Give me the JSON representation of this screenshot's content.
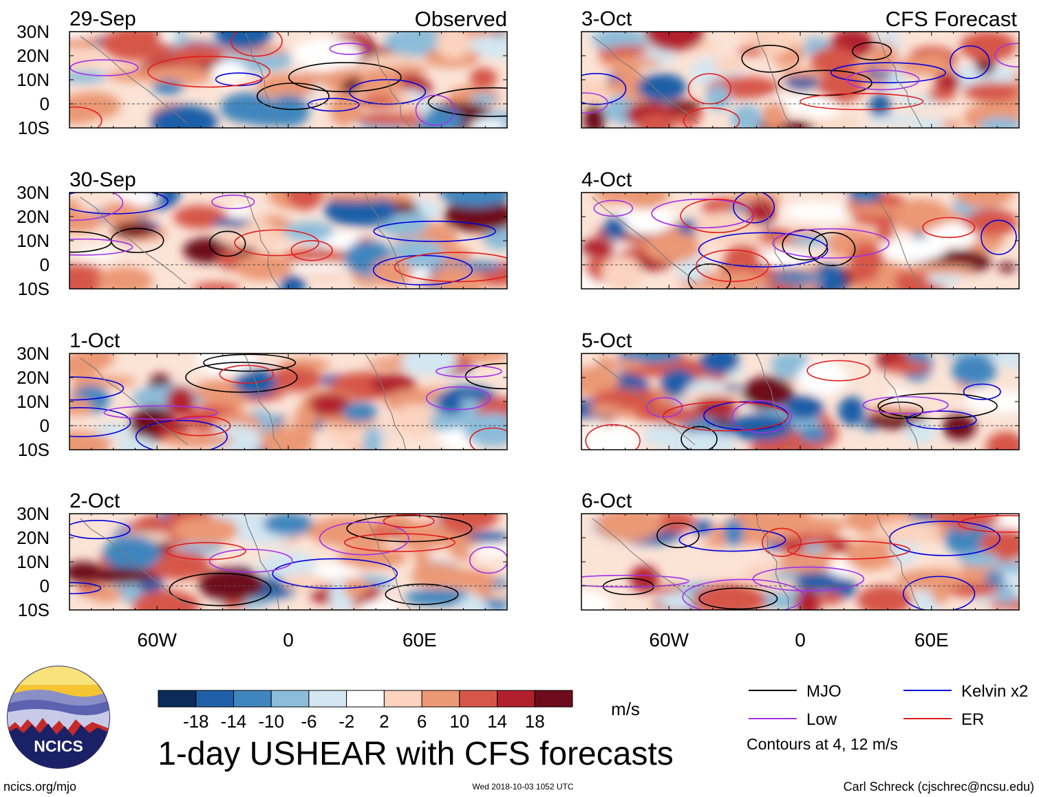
{
  "chart_data": {
    "type": "heatmap",
    "title": "1-day USHEAR with CFS forecasts",
    "variable": "USHEAR",
    "units": "m/s",
    "headers": {
      "left": "Observed",
      "right": "CFS Forecast"
    },
    "xlim": [
      -100,
      100
    ],
    "ylim": [
      -10,
      30
    ],
    "x_ticks": [
      {
        "value": -60,
        "label": "60W"
      },
      {
        "value": 0,
        "label": "0"
      },
      {
        "value": 60,
        "label": "60E"
      }
    ],
    "y_ticks": [
      {
        "value": 30,
        "label": "30N"
      },
      {
        "value": 20,
        "label": "20N"
      },
      {
        "value": 10,
        "label": "10N"
      },
      {
        "value": 0,
        "label": "0"
      },
      {
        "value": -10,
        "label": "10S"
      }
    ],
    "panels": [
      {
        "date": "29-Sep",
        "kind": "observed",
        "column": 0,
        "row": 0
      },
      {
        "date": "30-Sep",
        "kind": "observed",
        "column": 0,
        "row": 1
      },
      {
        "date": "1-Oct",
        "kind": "observed",
        "column": 0,
        "row": 2
      },
      {
        "date": "2-Oct",
        "kind": "observed",
        "column": 0,
        "row": 3
      },
      {
        "date": "3-Oct",
        "kind": "forecast",
        "column": 1,
        "row": 0
      },
      {
        "date": "4-Oct",
        "kind": "forecast",
        "column": 1,
        "row": 1
      },
      {
        "date": "5-Oct",
        "kind": "forecast",
        "column": 1,
        "row": 2
      },
      {
        "date": "6-Oct",
        "kind": "forecast",
        "column": 1,
        "row": 3
      }
    ],
    "colorbar": {
      "levels": [
        "-18",
        "-14",
        "-10",
        "-6",
        "-2",
        "2",
        "6",
        "10",
        "14",
        "18"
      ],
      "colors": [
        "#0d2b59",
        "#1f5fa8",
        "#3f86be",
        "#8cbcd9",
        "#d3e6f1",
        "#ffffff",
        "#fbd3be",
        "#eb9874",
        "#d65749",
        "#b2202d",
        "#6e0c1d"
      ],
      "units": "m/s"
    },
    "legend": [
      {
        "label": "MJO",
        "color": "#000000"
      },
      {
        "label": "Kelvin x2",
        "color": "#0000dd"
      },
      {
        "label": "Low",
        "color": "#a030e8"
      },
      {
        "label": "ER",
        "color": "#e31a1c"
      }
    ],
    "contour_note": "Contours at 4, 12 m/s"
  },
  "footer": {
    "website": "ncics.org/mjo",
    "timestamp": "Wed 2018-10-03 1052 UTC",
    "credit": "Carl Schreck (cjschrec@ncsu.edu)"
  },
  "logo": {
    "text": "NCICS"
  }
}
